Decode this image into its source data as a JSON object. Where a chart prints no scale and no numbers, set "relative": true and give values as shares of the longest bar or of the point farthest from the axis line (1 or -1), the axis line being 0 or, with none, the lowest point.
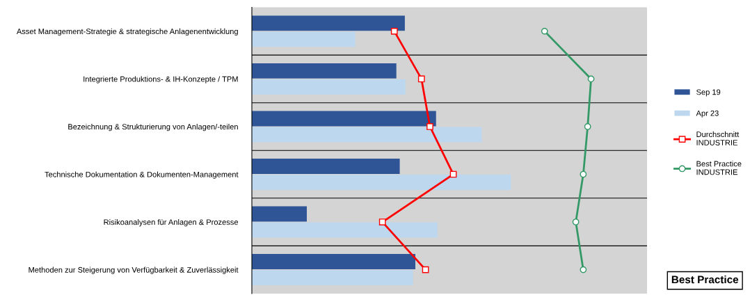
{
  "chart_data": {
    "type": "bar",
    "orientation": "horizontal",
    "relative": true,
    "grid": "y",
    "legend": "right",
    "categories": [
      "Asset Management-Strategie & strategische Anlagenentwicklung",
      "Integrierte Produktions- & IH-Konzepte / TPM",
      "Bezeichnung & Strukturierung von Anlagen/-teilen",
      "Technische Dokumentation & Dokumenten-Management",
      "Risikoanalysen für Anlagen & Prozesse",
      "Methoden zur Steigerung von Verfügbarkeit & Zuverlässigkeit"
    ],
    "series": [
      {
        "name": "Sep 19",
        "color": "#2f5597",
        "values": [
          0.451,
          0.426,
          0.543,
          0.436,
          0.162,
          0.482
        ]
      },
      {
        "name": "Apr 23",
        "color": "#bdd7ee",
        "values": [
          0.305,
          0.453,
          0.678,
          0.764,
          0.547,
          0.475
        ]
      },
      {
        "name": "Durchschnitt\nINDUSTRIE",
        "type": "line",
        "marker": "square",
        "color": "#ff0000",
        "values": [
          0.42,
          0.5,
          0.525,
          0.594,
          0.385,
          0.512
        ]
      },
      {
        "name": "Best Practice\nINDUSTRIE",
        "type": "line",
        "marker": "circle",
        "color": "#339966",
        "values": [
          0.863,
          1.0,
          0.99,
          0.977,
          0.955,
          0.977
        ]
      }
    ],
    "annotations": [
      "Best Practice"
    ]
  }
}
